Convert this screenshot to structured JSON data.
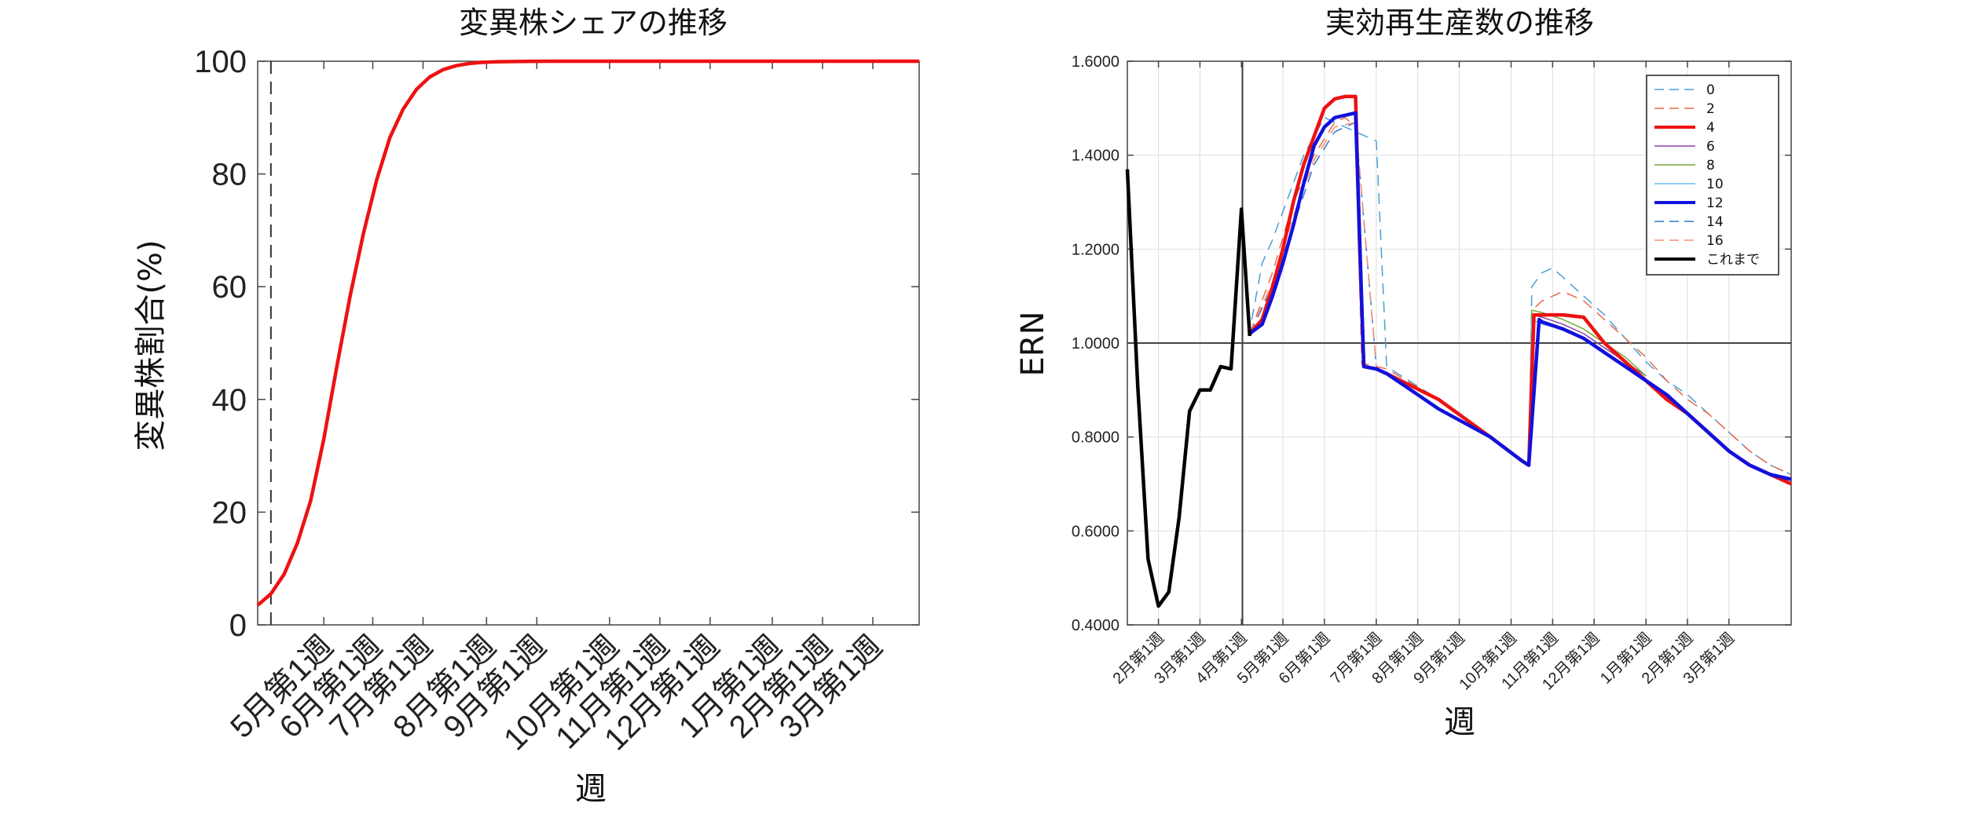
{
  "chart_data": [
    {
      "type": "line",
      "title": "変異株シェアの推移",
      "xlabel": "週",
      "ylabel": "変異株割合(%)",
      "ylim": [
        0,
        100
      ],
      "yticks": [
        0,
        20,
        40,
        60,
        80,
        100
      ],
      "xlim": [
        0,
        50
      ],
      "xticks": [
        {
          "x": 5,
          "label": "5月第1週"
        },
        {
          "x": 8.7,
          "label": "6月第1週"
        },
        {
          "x": 12.5,
          "label": "7月第1週"
        },
        {
          "x": 17.3,
          "label": "8月第1週"
        },
        {
          "x": 21.1,
          "label": "9月第1週"
        },
        {
          "x": 26.6,
          "label": "10月第1週"
        },
        {
          "x": 30.4,
          "label": "11月第1週"
        },
        {
          "x": 34.2,
          "label": "12月第1週"
        },
        {
          "x": 38.9,
          "label": "1月第1週"
        },
        {
          "x": 42.7,
          "label": "2月第1週"
        },
        {
          "x": 46.5,
          "label": "3月第1週"
        }
      ],
      "vline_x": 1,
      "grid": false,
      "series": [
        {
          "color": "#ee1111",
          "x": [
            0,
            1,
            2,
            3,
            4,
            5,
            6,
            7,
            8,
            9,
            10,
            11,
            12,
            13,
            14,
            15,
            16,
            17,
            18,
            20,
            22,
            25,
            30,
            40,
            50
          ],
          "values": [
            3.5,
            5.5,
            9,
            14.5,
            22,
            33,
            46,
            58.5,
            69.5,
            79,
            86.5,
            91.5,
            95,
            97.2,
            98.5,
            99.2,
            99.6,
            99.8,
            99.9,
            99.97,
            100,
            100,
            100,
            100,
            100
          ]
        }
      ]
    },
    {
      "type": "line",
      "title": "実効再生産数の推移",
      "xlabel": "週",
      "ylabel": "ERN",
      "ylim": [
        0.4,
        1.6
      ],
      "yticks": [
        0.4,
        0.6,
        0.8,
        1.0,
        1.2,
        1.4,
        1.6
      ],
      "ytick_labels": [
        "0.4000",
        "0.6000",
        "0.8000",
        "1.0000",
        "1.2000",
        "1.4000",
        "1.6000"
      ],
      "xlim": [
        0,
        64
      ],
      "xticks": [
        {
          "x": 3,
          "label": "2月第1週"
        },
        {
          "x": 7,
          "label": "3月第1週"
        },
        {
          "x": 11,
          "label": "4月第1週"
        },
        {
          "x": 15,
          "label": "5月第1週"
        },
        {
          "x": 19,
          "label": "6月第1週"
        },
        {
          "x": 24,
          "label": "7月第1週"
        },
        {
          "x": 28,
          "label": "8月第1週"
        },
        {
          "x": 32,
          "label": "9月第1週"
        },
        {
          "x": 37,
          "label": "10月第1週"
        },
        {
          "x": 41,
          "label": "11月第1週"
        },
        {
          "x": 45,
          "label": "12月第1週"
        },
        {
          "x": 50,
          "label": "1月第1週"
        },
        {
          "x": 54,
          "label": "2月第1週"
        },
        {
          "x": 58,
          "label": "3月第1週"
        }
      ],
      "hline_y": 1.0,
      "vline_x": 11.1,
      "grid": true,
      "legend_position": "top-right",
      "series": [
        {
          "name": "0",
          "color": "#4a9fd8",
          "dash": true,
          "width": 1.5,
          "x": [
            12,
            13,
            14,
            15,
            16,
            17,
            18,
            19,
            20,
            21,
            22,
            23,
            24,
            25,
            30,
            35,
            38,
            38.7,
            39,
            40,
            41,
            42,
            44,
            46,
            48,
            50,
            52,
            54,
            56,
            58,
            60,
            62,
            64
          ],
          "values": [
            1.05,
            1.17,
            1.22,
            1.28,
            1.34,
            1.4,
            1.44,
            1.48,
            1.47,
            1.46,
            1.45,
            1.44,
            1.43,
            0.95,
            0.88,
            0.8,
            0.75,
            0.74,
            1.12,
            1.15,
            1.16,
            1.14,
            1.1,
            1.06,
            1.01,
            0.96,
            0.92,
            0.89,
            0.85,
            0.81,
            0.77,
            0.74,
            0.72
          ]
        },
        {
          "name": "2",
          "color": "#e8694a",
          "dash": true,
          "width": 1.5,
          "x": [
            11.8,
            14,
            16,
            18,
            20,
            21,
            22,
            22.6,
            23,
            25,
            30,
            35,
            38,
            38.7,
            39,
            40,
            42,
            44,
            46,
            48,
            50,
            52,
            54,
            56,
            58,
            60,
            62,
            64
          ],
          "values": [
            1.02,
            1.15,
            1.3,
            1.4,
            1.47,
            1.48,
            1.46,
            0.955,
            0.955,
            0.945,
            0.88,
            0.8,
            0.75,
            0.74,
            1.07,
            1.09,
            1.11,
            1.09,
            1.05,
            1.01,
            0.97,
            0.92,
            0.88,
            0.85,
            0.81,
            0.77,
            0.74,
            0.72
          ]
        },
        {
          "name": "4",
          "color": "#ee1111",
          "dash": false,
          "width": 4.5,
          "x": [
            11.8,
            13,
            14,
            15,
            16,
            17,
            18,
            19,
            20,
            21,
            22,
            22.4,
            22.8,
            24,
            25,
            30,
            35,
            38,
            38.7,
            39.2,
            40,
            42,
            44,
            46,
            48,
            50,
            52,
            54,
            56,
            58,
            60,
            62,
            64
          ],
          "values": [
            1.02,
            1.05,
            1.12,
            1.2,
            1.3,
            1.38,
            1.44,
            1.5,
            1.52,
            1.525,
            1.525,
            1.2,
            0.95,
            0.945,
            0.935,
            0.88,
            0.8,
            0.75,
            0.74,
            1.06,
            1.06,
            1.06,
            1.055,
            1.0,
            0.96,
            0.92,
            0.88,
            0.85,
            0.81,
            0.77,
            0.74,
            0.72,
            0.7
          ]
        },
        {
          "name": "6",
          "color": "#8844aa",
          "dash": false,
          "width": 1.5,
          "x": [
            38.7,
            39,
            40,
            42,
            44,
            46,
            48,
            50
          ],
          "values": [
            0.74,
            1.06,
            1.055,
            1.04,
            1.02,
            0.99,
            0.96,
            0.93
          ]
        },
        {
          "name": "8",
          "color": "#77aa33",
          "dash": false,
          "width": 1.5,
          "x": [
            38.7,
            39,
            40,
            42,
            44,
            46,
            48,
            50
          ],
          "values": [
            0.74,
            1.07,
            1.065,
            1.05,
            1.03,
            1.0,
            0.97,
            0.93
          ]
        },
        {
          "name": "10",
          "color": "#66bbee",
          "dash": false,
          "width": 1.5,
          "x": [
            38.7,
            39,
            40,
            42,
            44,
            46
          ],
          "values": [
            0.74,
            1.05,
            1.04,
            1.03,
            1.01,
            0.98
          ]
        },
        {
          "name": "12",
          "color": "#1111dd",
          "dash": false,
          "width": 4.5,
          "x": [
            11.8,
            13,
            14,
            15,
            16,
            17,
            18,
            19,
            20,
            21,
            22,
            22.8,
            24,
            25,
            26,
            28,
            30,
            35,
            38,
            38.7,
            39.7,
            40,
            42,
            44,
            46,
            48,
            50,
            52,
            54,
            56,
            58,
            60,
            62,
            64
          ],
          "values": [
            1.02,
            1.04,
            1.1,
            1.17,
            1.25,
            1.34,
            1.42,
            1.46,
            1.48,
            1.485,
            1.49,
            0.95,
            0.945,
            0.935,
            0.92,
            0.89,
            0.86,
            0.8,
            0.75,
            0.74,
            1.05,
            1.045,
            1.03,
            1.01,
            0.98,
            0.95,
            0.92,
            0.89,
            0.85,
            0.81,
            0.77,
            0.74,
            0.72,
            0.71
          ]
        },
        {
          "name": "14",
          "color": "#3377cc",
          "dash": true,
          "width": 1.5,
          "x": [
            11.8,
            14,
            16,
            18,
            20,
            22,
            24
          ],
          "values": [
            1.02,
            1.12,
            1.25,
            1.38,
            1.45,
            1.47,
            0.95
          ]
        },
        {
          "name": "16",
          "color": "#f09070",
          "dash": true,
          "width": 1.5,
          "x": [
            11.8,
            14,
            16,
            18,
            20,
            22,
            24
          ],
          "values": [
            1.02,
            1.13,
            1.27,
            1.39,
            1.46,
            1.47,
            0.95
          ]
        },
        {
          "name": "これまで",
          "color": "#000000",
          "dash": false,
          "width": 4.5,
          "x": [
            0,
            1,
            2,
            3,
            4,
            5,
            6,
            7,
            8,
            9,
            10,
            11,
            11.8
          ],
          "values": [
            1.37,
            0.91,
            0.54,
            0.44,
            0.47,
            0.63,
            0.855,
            0.9,
            0.9,
            0.95,
            0.945,
            1.285,
            1.015
          ]
        }
      ]
    }
  ]
}
